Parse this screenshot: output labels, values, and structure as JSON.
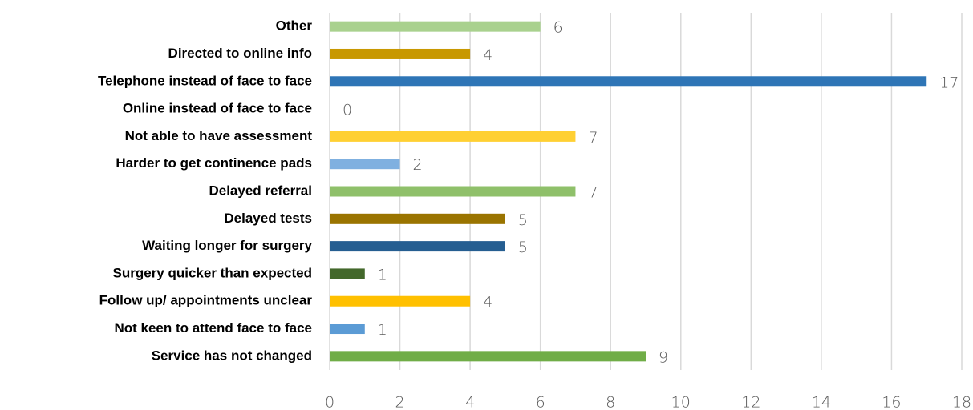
{
  "chart_data": {
    "type": "hbar",
    "categories": [
      "Other",
      "Directed to online info",
      "Telephone instead of face to face",
      "Online instead of face to face",
      "Not able to have assessment",
      "Harder to get continence pads",
      "Delayed referral",
      "Delayed tests",
      "Waiting longer for surgery",
      "Surgery quicker than expected",
      "Follow up/ appointments unclear",
      "Not keen to attend face to face",
      "Service has not changed"
    ],
    "values": [
      6,
      4,
      17,
      0,
      7,
      2,
      7,
      5,
      5,
      1,
      4,
      1,
      9
    ],
    "colors": [
      "#a9d18e",
      "#c89800",
      "#2e75b6",
      "#4472c4",
      "#ffd033",
      "#7fb0e0",
      "#8fc06a",
      "#9a7400",
      "#255e91",
      "#43682b",
      "#ffc000",
      "#5b9bd5",
      "#70ad47"
    ],
    "xlim": [
      0,
      18
    ],
    "xticks": [
      0,
      2,
      4,
      6,
      8,
      10,
      12,
      14,
      16,
      18
    ],
    "grid": true
  }
}
